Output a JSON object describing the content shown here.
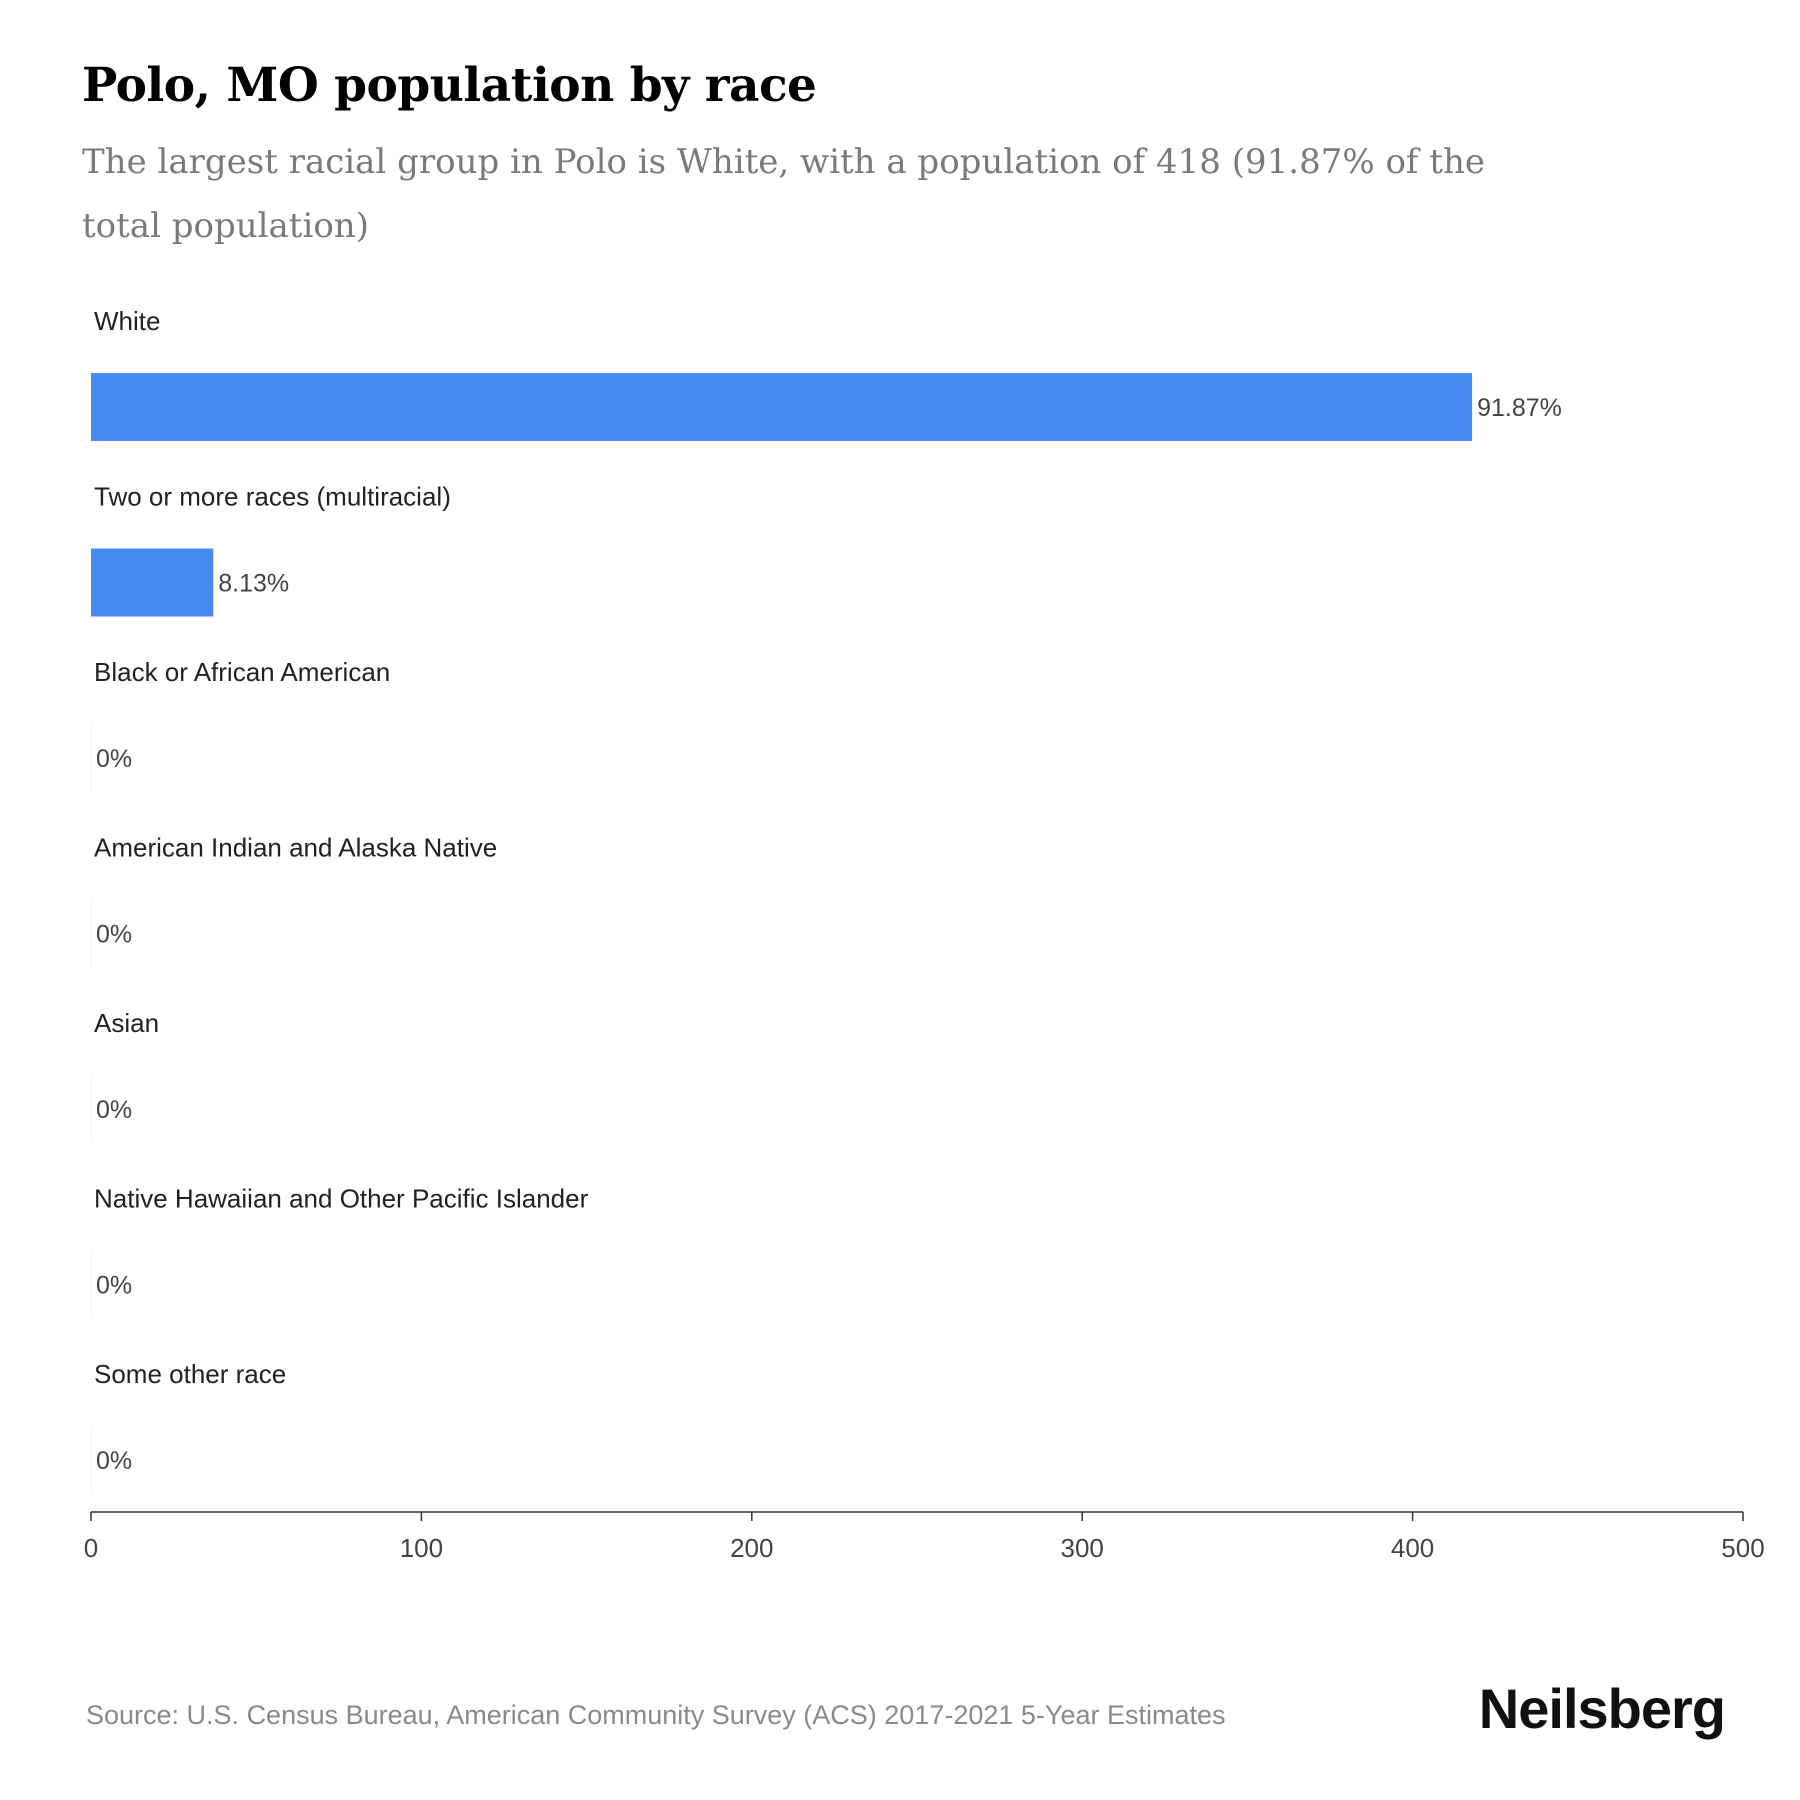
{
  "header": {
    "title": "Polo, MO population by race",
    "subtitle": "The largest racial group in Polo is White, with a population of 418 (91.87% of the total population)"
  },
  "chart_data": {
    "type": "bar",
    "orientation": "horizontal",
    "categories": [
      "White",
      "Two or more races (multiracial)",
      "Black or African American",
      "American Indian and Alaska Native",
      "Asian",
      "Native Hawaiian and Other Pacific Islander",
      "Some other race"
    ],
    "values": [
      418,
      37,
      0,
      0,
      0,
      0,
      0
    ],
    "value_labels": [
      "91.87%",
      "8.13%",
      "0%",
      "0%",
      "0%",
      "0%",
      "0%"
    ],
    "xlim": [
      0,
      500
    ],
    "x_ticks": [
      0,
      100,
      200,
      300,
      400,
      500
    ],
    "bar_color": "#4a8af4",
    "grid": false,
    "legend": "none"
  },
  "footer": {
    "source": "Source: U.S. Census Bureau, American Community Survey (ACS) 2017-2021 5-Year Estimates",
    "brand": "Neilsberg"
  }
}
